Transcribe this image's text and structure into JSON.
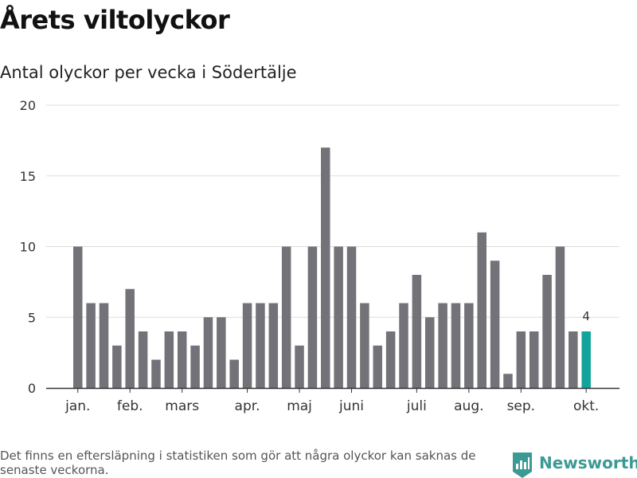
{
  "title": "Årets viltolyckor",
  "subtitle": "Antal olyckor per vecka i Södertälje",
  "footnote": "Det finns en eftersläpning i statistiken som gör att några olyckor kan saknas de senaste veckorna.",
  "brand": {
    "name": "Newsworthy",
    "color": "#3b9a94"
  },
  "colors": {
    "bar": "#737278",
    "highlight": "#12a39b",
    "grid": "#dddddd",
    "axis": "#333333"
  },
  "chart_data": {
    "type": "bar",
    "title": "Årets viltolyckor",
    "subtitle": "Antal olyckor per vecka i Södertälje",
    "xlabel": "",
    "ylabel": "",
    "ylim": [
      0,
      20
    ],
    "yticks": [
      0,
      5,
      10,
      15,
      20
    ],
    "grid": true,
    "values": [
      10,
      6,
      6,
      3,
      7,
      4,
      2,
      4,
      4,
      3,
      5,
      5,
      2,
      6,
      6,
      6,
      10,
      3,
      10,
      17,
      10,
      10,
      6,
      3,
      4,
      6,
      8,
      5,
      6,
      6,
      6,
      11,
      9,
      1,
      4,
      4,
      8,
      10,
      4,
      4
    ],
    "highlight_index": 39,
    "highlight_label": "4",
    "month_labels": [
      {
        "label": "jan.",
        "week_index": 0
      },
      {
        "label": "feb.",
        "week_index": 4
      },
      {
        "label": "mars",
        "week_index": 8
      },
      {
        "label": "apr.",
        "week_index": 13
      },
      {
        "label": "maj",
        "week_index": 17
      },
      {
        "label": "juni",
        "week_index": 21
      },
      {
        "label": "juli",
        "week_index": 26
      },
      {
        "label": "aug.",
        "week_index": 30
      },
      {
        "label": "sep.",
        "week_index": 34
      },
      {
        "label": "okt.",
        "week_index": 39
      }
    ]
  }
}
